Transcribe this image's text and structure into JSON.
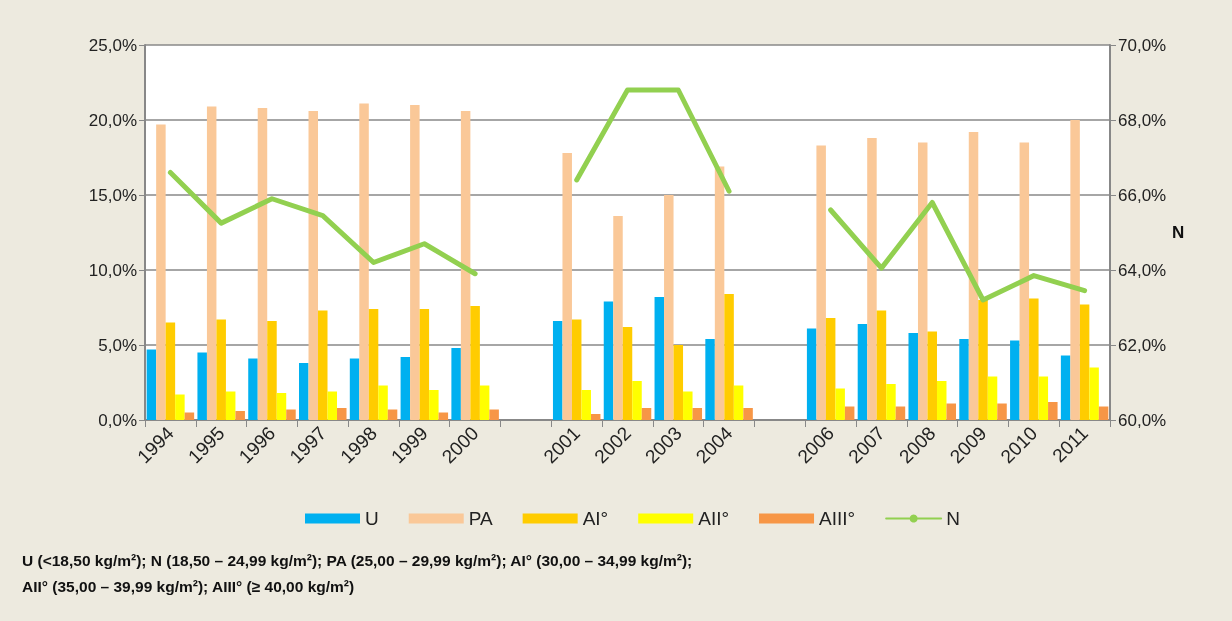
{
  "chart_data": {
    "type": "bar",
    "categories": [
      "1994",
      "1995",
      "1996",
      "1997",
      "1998",
      "1999",
      "2000",
      null,
      "2001",
      "2002",
      "2003",
      "2004",
      null,
      "2006",
      "2007",
      "2008",
      "2009",
      "2010",
      "2011"
    ],
    "series": [
      {
        "name": "U",
        "color": "#00b0f0",
        "values": [
          4.7,
          4.5,
          4.1,
          3.8,
          4.1,
          4.2,
          4.8,
          null,
          6.6,
          7.9,
          8.2,
          5.4,
          null,
          6.1,
          6.4,
          5.8,
          5.4,
          5.3,
          4.3
        ]
      },
      {
        "name": "PA",
        "color": "#fac898",
        "values": [
          19.7,
          20.9,
          20.8,
          20.6,
          21.1,
          21.0,
          20.6,
          null,
          17.8,
          13.6,
          15.0,
          16.9,
          null,
          18.3,
          18.8,
          18.5,
          19.2,
          18.5,
          20.0
        ]
      },
      {
        "name": "AI°",
        "color": "#ffcc00",
        "values": [
          6.5,
          6.7,
          6.6,
          7.3,
          7.4,
          7.4,
          7.6,
          null,
          6.7,
          6.2,
          5.0,
          8.4,
          null,
          6.8,
          7.3,
          5.9,
          8.0,
          8.1,
          7.7
        ]
      },
      {
        "name": "AII°",
        "color": "#ffff00",
        "values": [
          1.7,
          1.9,
          1.8,
          1.9,
          2.3,
          2.0,
          2.3,
          null,
          2.0,
          2.6,
          1.9,
          2.3,
          null,
          2.1,
          2.4,
          2.6,
          2.9,
          2.9,
          3.5
        ]
      },
      {
        "name": "AIII°",
        "color": "#f79646",
        "values": [
          0.5,
          0.6,
          0.7,
          0.8,
          0.7,
          0.5,
          0.7,
          null,
          0.4,
          0.8,
          0.8,
          0.8,
          null,
          0.9,
          0.9,
          1.1,
          1.1,
          1.2,
          0.9
        ]
      },
      {
        "name": "N",
        "type": "line",
        "axis": "y2",
        "color": "#92d050",
        "values": [
          66.6,
          65.25,
          65.9,
          65.45,
          64.2,
          64.7,
          63.9,
          null,
          66.4,
          68.8,
          68.8,
          66.1,
          null,
          65.6,
          64.05,
          65.8,
          63.2,
          63.85,
          63.45
        ]
      }
    ],
    "ylim": [
      0,
      25
    ],
    "yticks": [
      {
        "value": 0,
        "label": "0,0%"
      },
      {
        "value": 5,
        "label": "5,0%"
      },
      {
        "value": 10,
        "label": "10,0%"
      },
      {
        "value": 15,
        "label": "15,0%"
      },
      {
        "value": 20,
        "label": "20,0%"
      },
      {
        "value": 25,
        "label": "25,0%"
      }
    ],
    "y2label": "N",
    "y2lim": [
      60,
      70
    ],
    "y2ticks": [
      {
        "value": 60,
        "label": "60,0%"
      },
      {
        "value": 62,
        "label": "62,0%"
      },
      {
        "value": 64,
        "label": "64,0%"
      },
      {
        "value": 66,
        "label": "66,0%"
      },
      {
        "value": 68,
        "label": "68,0%"
      },
      {
        "value": 70,
        "label": "70,0%"
      }
    ],
    "grid": "y",
    "legend": "bottom",
    "marker": "none",
    "annotations": [
      "U (<18,50 kg/m²); N (18,50 – 24,99 kg/m²); PA (25,00 – 29,99 kg/m²); AI° (30,00 – 34,99 kg/m²);",
      "AII° (35,00 – 39,99 kg/m²); AIII° (≥ 40,00 kg/m²)"
    ]
  }
}
